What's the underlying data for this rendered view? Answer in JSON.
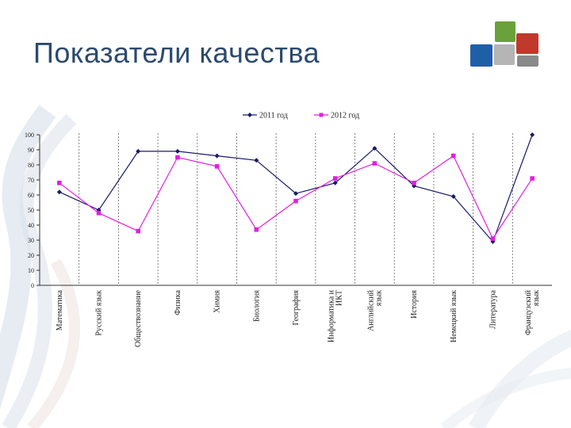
{
  "slide": {
    "title": "Показатели качества"
  },
  "colors": {
    "title": "#2b4a6e",
    "series_2011": "#1a1a66",
    "series_2012": "#e020e0"
  },
  "chart_data": {
    "type": "line",
    "title": "",
    "xlabel": "",
    "ylabel": "",
    "ylim": [
      0,
      100
    ],
    "yticks": [
      0,
      10,
      20,
      30,
      40,
      50,
      60,
      70,
      80,
      90,
      100
    ],
    "grid": "vertical dashed",
    "legend": "top",
    "categories": [
      [
        "Математика"
      ],
      [
        "Русский язык"
      ],
      [
        "Обществознание"
      ],
      [
        "Физика"
      ],
      [
        "Химия"
      ],
      [
        "Биология"
      ],
      [
        "География"
      ],
      [
        "Информатика и",
        "ИКТ"
      ],
      [
        "Английский",
        "язык"
      ],
      [
        "История"
      ],
      [
        "Немецкий язык"
      ],
      [
        "Литература"
      ],
      [
        "Французский",
        "язык"
      ]
    ],
    "series": [
      {
        "name": "2011 год",
        "marker": "diamond",
        "values": [
          62,
          50,
          89,
          89,
          86,
          83,
          61,
          68,
          91,
          66,
          59,
          29,
          100
        ]
      },
      {
        "name": "2012 год",
        "marker": "square",
        "values": [
          68,
          48,
          36,
          85,
          79,
          37,
          56,
          71,
          81,
          68,
          86,
          31,
          71
        ]
      }
    ]
  }
}
